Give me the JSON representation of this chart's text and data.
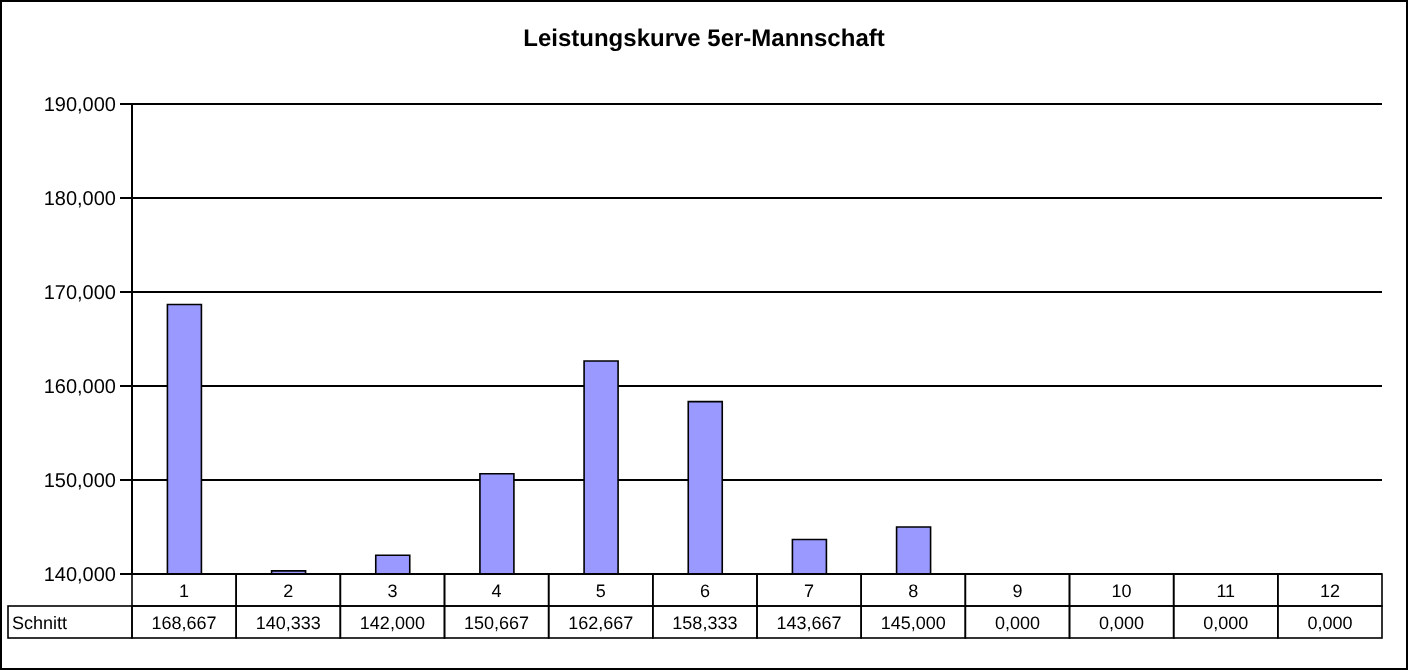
{
  "chart_data": {
    "type": "bar",
    "title": "Leistungskurve 5er-Mannschaft",
    "categories": [
      "1",
      "2",
      "3",
      "4",
      "5",
      "6",
      "7",
      "8",
      "9",
      "10",
      "11",
      "12"
    ],
    "series": [
      {
        "name": "Schnitt",
        "color": "#9999ff",
        "values": [
          168.667,
          140.333,
          142.0,
          150.667,
          162.667,
          158.333,
          143.667,
          145.0,
          null,
          null,
          null,
          null
        ],
        "value_labels": [
          "168,667",
          "140,333",
          "142,000",
          "150,667",
          "162,667",
          "158,333",
          "143,667",
          "145,000",
          "0,000",
          "0,000",
          "0,000",
          "0,000"
        ]
      }
    ],
    "ylim": [
      140,
      190
    ],
    "yticks": [
      {
        "value": 140,
        "label": "140,000"
      },
      {
        "value": 150,
        "label": "150,000"
      },
      {
        "value": 160,
        "label": "160,000"
      },
      {
        "value": 170,
        "label": "170,000"
      },
      {
        "value": 180,
        "label": "180,000"
      },
      {
        "value": 190,
        "label": "190,000"
      }
    ],
    "grid": "y",
    "legend": false
  }
}
